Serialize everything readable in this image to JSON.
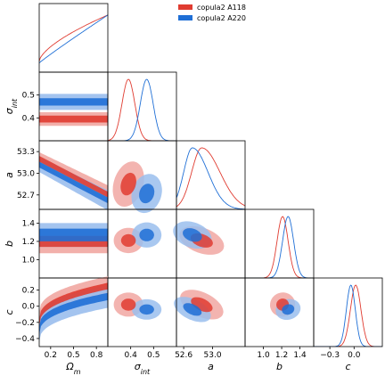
{
  "chart_data": {
    "type": "corner",
    "parameters": [
      {
        "key": "om",
        "label_base": "Ω",
        "label_sub": "m",
        "range": [
          0.05,
          0.95
        ],
        "ticks": [
          0.2,
          0.5,
          0.8
        ],
        "tick_labels": [
          "0.2",
          "0.5",
          "0.8"
        ]
      },
      {
        "key": "sigma",
        "label_base": "σ",
        "label_sub": "int",
        "range": [
          0.3,
          0.6
        ],
        "ticks": [
          0.4,
          0.5
        ],
        "tick_labels": [
          "0.4",
          "0.5"
        ]
      },
      {
        "key": "a",
        "label_base": "a",
        "label_sub": "",
        "range": [
          52.5,
          53.45
        ],
        "ticks": [
          52.7,
          53.0,
          53.3
        ],
        "tick_labels": [
          "52.7",
          "53.0",
          "53.3"
        ],
        "x_ticks": [
          52.6,
          53.0
        ],
        "x_tick_labels": [
          "52.6",
          "53.0"
        ]
      },
      {
        "key": "b",
        "label_base": "b",
        "label_sub": "",
        "range": [
          0.8,
          1.55
        ],
        "ticks": [
          1.0,
          1.2,
          1.4
        ],
        "tick_labels": [
          "1.0",
          "1.2",
          "1.4"
        ]
      },
      {
        "key": "c",
        "label_base": "c",
        "label_sub": "",
        "range": [
          -0.5,
          0.35
        ],
        "ticks": [
          -0.4,
          -0.2,
          0.0,
          0.2
        ],
        "tick_labels": [
          "−0.4",
          "−0.2",
          "0.0",
          "0.2"
        ],
        "x_ticks": [
          -0.3,
          0.0
        ],
        "x_tick_labels": [
          "−0.3",
          "0.0"
        ]
      }
    ],
    "series": [
      {
        "name": "copula2 A118",
        "color": "#e03c31",
        "peaks": {
          "om": "> 0.9",
          "sigma": 0.39,
          "a": 52.85,
          "b": 1.21,
          "c": 0.02
        },
        "sigmas": {
          "sigma": 0.028,
          "a": 0.14,
          "b": 0.06,
          "c": 0.065
        }
      },
      {
        "name": "copula2 A220",
        "color": "#1f6fd6",
        "peaks": {
          "om": "> 0.9",
          "sigma": 0.47,
          "a": 52.72,
          "b": 1.27,
          "c": -0.04
        },
        "sigmas": {
          "sigma": 0.028,
          "a": 0.12,
          "b": 0.06,
          "c": 0.055
        }
      }
    ],
    "legend": "top-right"
  }
}
